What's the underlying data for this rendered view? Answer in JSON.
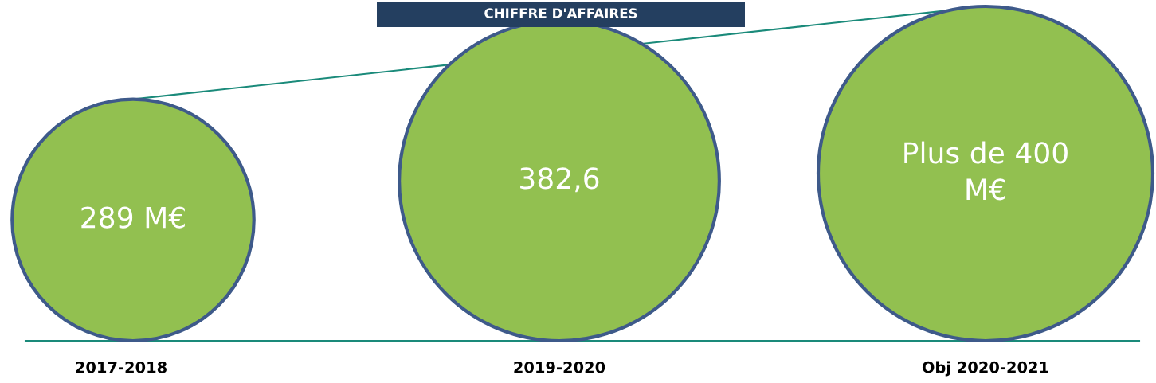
{
  "chart_data": {
    "type": "other",
    "title": "CHIFFRE D'AFFAIRES",
    "categories": [
      "2017-2018",
      "2019-2020",
      "Obj 2020-2021"
    ],
    "values": [
      289,
      382.6,
      400
    ],
    "value_labels": [
      "289 M€",
      "382,6",
      "Plus de 400\nM€"
    ],
    "color": "#92c050"
  }
}
